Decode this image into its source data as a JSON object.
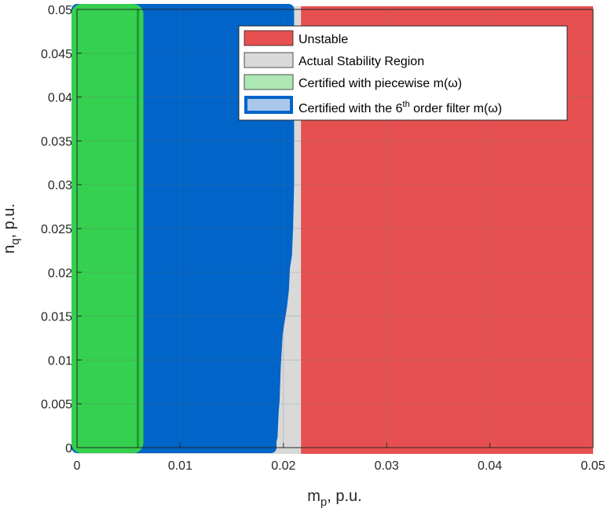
{
  "chart_data": {
    "type": "area",
    "xlabel_main": "m",
    "xlabel_sub": "p",
    "xlabel_rest": ", p.u.",
    "ylabel_main": "n",
    "ylabel_sub": "q",
    "ylabel_rest": ", p.u.",
    "xlim": [
      0,
      0.05
    ],
    "ylim": [
      0,
      0.05
    ],
    "xticks": [
      0,
      0.01,
      0.02,
      0.03,
      0.04,
      0.05
    ],
    "xtick_labels": [
      "0",
      "0.01",
      "0.02",
      "0.03",
      "0.04",
      "0.05"
    ],
    "yticks": [
      0,
      0.005,
      0.01,
      0.015,
      0.02,
      0.025,
      0.03,
      0.035,
      0.04,
      0.045,
      0.05
    ],
    "ytick_labels": [
      "0",
      "0.005",
      "0.01",
      "0.015",
      "0.02",
      "0.025",
      "0.03",
      "0.035",
      "0.04",
      "0.045",
      "0.05"
    ],
    "grid": true,
    "legend_position": "top-right",
    "regions": {
      "unstable": {
        "name": "Unstable",
        "color": "#e65050",
        "x_from": 0.0217,
        "x_to": 0.05
      },
      "actual_stability": {
        "name": "Actual Stability Region",
        "color": "#d9d9d9",
        "x_from": 0.0,
        "x_to": 0.0217
      },
      "piecewise": {
        "name": "Certified with piecewise m(ω)",
        "color": "#35d04f",
        "x_from": 0.0,
        "x_to": 0.0059
      },
      "filter6": {
        "name": "Certified with the 6th order filter m(ω)",
        "legend_prefix": "Certified with the 6",
        "legend_sup": "th",
        "legend_suffix": " order filter m(ω)",
        "color": "#0064c8",
        "boundary": [
          [
            0.0188,
            0.0
          ],
          [
            0.0188,
            0.0008
          ],
          [
            0.0189,
            0.0012
          ],
          [
            0.019,
            0.004
          ],
          [
            0.0191,
            0.0055
          ],
          [
            0.0192,
            0.009
          ],
          [
            0.0194,
            0.013
          ],
          [
            0.0196,
            0.0145
          ],
          [
            0.0198,
            0.016
          ],
          [
            0.02,
            0.018
          ],
          [
            0.0201,
            0.0205
          ],
          [
            0.0203,
            0.022
          ],
          [
            0.0204,
            0.025
          ],
          [
            0.0205,
            0.03
          ],
          [
            0.0205,
            0.05
          ]
        ]
      }
    }
  }
}
